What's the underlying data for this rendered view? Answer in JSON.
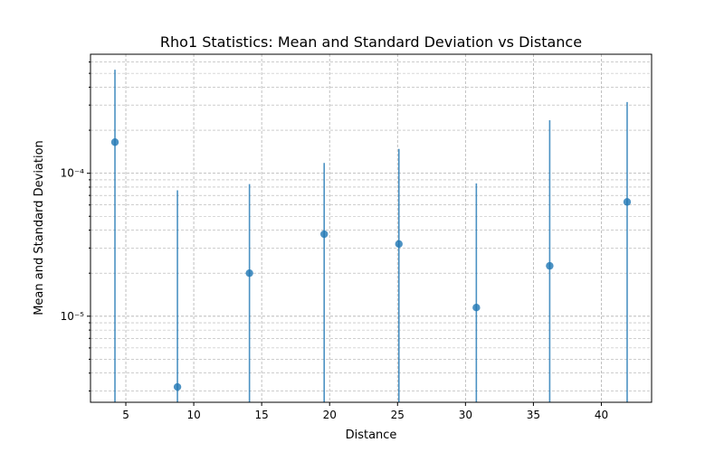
{
  "chart_data": {
    "type": "scatter",
    "title": "Rho1 Statistics: Mean and Standard Deviation vs Distance",
    "xlabel": "Distance",
    "ylabel": "Mean and Standard Deviation",
    "yscale": "log",
    "xlim": [
      2.4,
      43.7
    ],
    "ylim": [
      2.5e-06,
      0.00068
    ],
    "grid": true,
    "color": "#1f77b4",
    "x_ticks": [
      5,
      10,
      15,
      20,
      25,
      30,
      35,
      40
    ],
    "x_tick_labels": [
      "5",
      "10",
      "15",
      "20",
      "25",
      "30",
      "35",
      "40"
    ],
    "y_ticks": [
      1e-05,
      0.0001
    ],
    "y_tick_labels": [
      "10⁻⁵",
      "10⁻⁴"
    ],
    "series": [
      {
        "x": [
          4.2,
          8.8,
          14.1,
          19.6,
          25.1,
          30.8,
          36.2,
          41.9
        ],
        "y": [
          0.000165,
          3.2e-06,
          2e-05,
          3.75e-05,
          3.2e-05,
          1.15e-05,
          2.25e-05,
          6.3e-05
        ],
        "y_upper": [
          0.00053,
          7.6e-05,
          8.4e-05,
          0.000118,
          0.000148,
          8.5e-05,
          0.000235,
          0.000315
        ]
      }
    ]
  }
}
